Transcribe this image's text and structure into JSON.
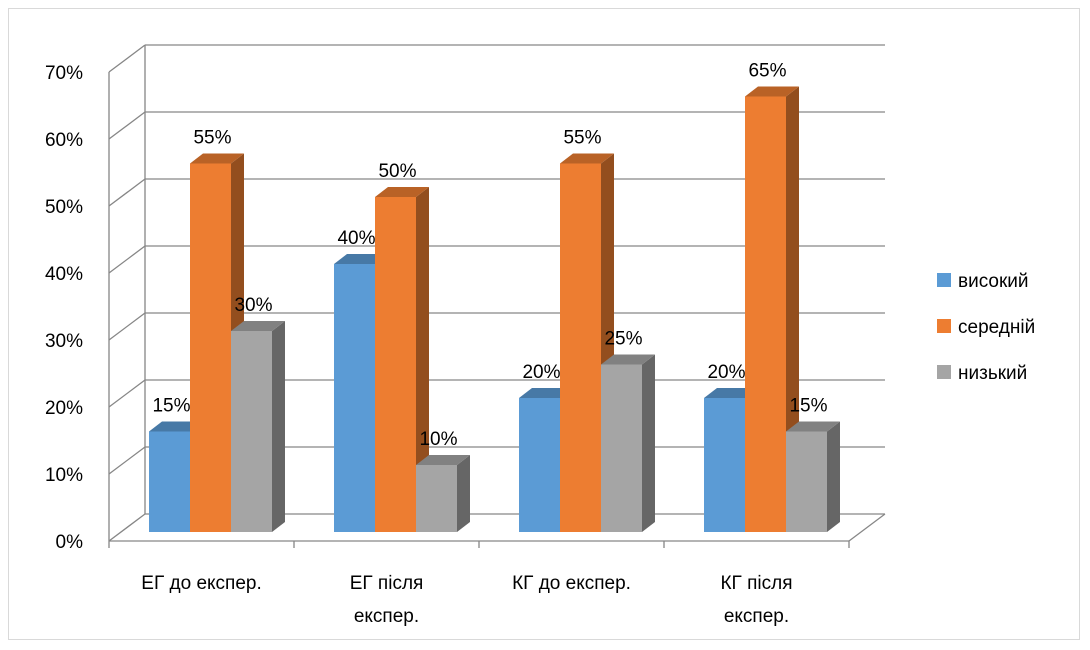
{
  "chart_data": {
    "type": "bar",
    "style": "3d-clustered-column",
    "categories": [
      [
        "ЕГ до експер."
      ],
      [
        "ЕГ після",
        "експер."
      ],
      [
        "КГ до експер."
      ],
      [
        "КГ після",
        "експер."
      ]
    ],
    "series": [
      {
        "name": "високий",
        "color": "#5b9bd5",
        "values": [
          15,
          40,
          20,
          20
        ]
      },
      {
        "name": "середній",
        "color": "#ed7d31",
        "values": [
          55,
          50,
          55,
          65
        ]
      },
      {
        "name": "низький",
        "color": "#a5a5a5",
        "values": [
          30,
          10,
          25,
          15
        ]
      }
    ],
    "data_labels": [
      [
        "15%",
        "40%",
        "20%",
        "20%"
      ],
      [
        "55%",
        "50%",
        "55%",
        "65%"
      ],
      [
        "30%",
        "10%",
        "25%",
        "15%"
      ]
    ],
    "ylim": [
      0,
      70
    ],
    "y_ticks": [
      0,
      10,
      20,
      30,
      40,
      50,
      60,
      70
    ],
    "y_tick_labels": [
      "0%",
      "10%",
      "20%",
      "30%",
      "40%",
      "50%",
      "60%",
      "70%"
    ],
    "grid": true,
    "legend_position": "right"
  }
}
